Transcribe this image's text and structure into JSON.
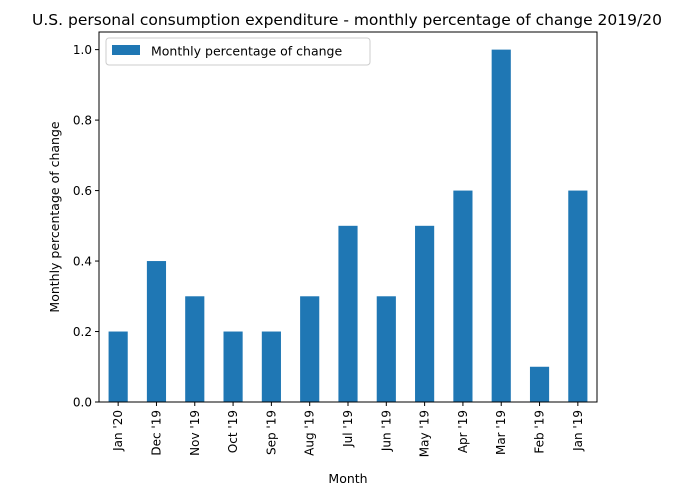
{
  "chart_data": {
    "type": "bar",
    "title": "U.S. personal consumption expenditure - monthly percentage of change 2019/20",
    "xlabel": "Month",
    "ylabel": "Monthly percentage of change",
    "categories": [
      "Jan '20",
      "Dec '19",
      "Nov '19",
      "Oct '19",
      "Sep '19",
      "Aug '19",
      "Jul '19",
      "Jun '19",
      "May '19",
      "Apr '19",
      "Mar '19",
      "Feb '19",
      "Jan '19"
    ],
    "series": [
      {
        "name": "Monthly percentage of change",
        "values": [
          0.2,
          0.4,
          0.3,
          0.2,
          0.2,
          0.3,
          0.5,
          0.3,
          0.5,
          0.6,
          1.0,
          0.1,
          0.6
        ],
        "color": "#1f77b4"
      }
    ],
    "ylim": [
      0,
      1.05
    ],
    "yticks": [
      0.0,
      0.2,
      0.4,
      0.6,
      0.8,
      1.0
    ],
    "ytick_labels": [
      "0.0",
      "0.2",
      "0.4",
      "0.6",
      "0.8",
      "1.0"
    ],
    "grid": false,
    "legend_position": "top-left"
  }
}
